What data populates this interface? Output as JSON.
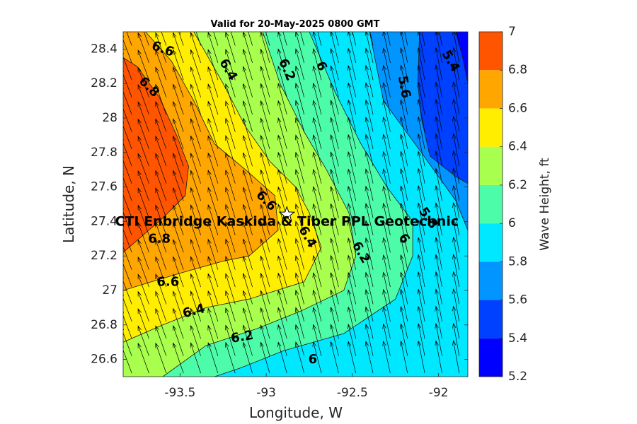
{
  "chart_data": {
    "type": "heatmap",
    "title": "Valid for 20-May-2025 0800 GMT",
    "xlabel": "Longitude, W",
    "ylabel": "Latitude, N",
    "xlim": [
      -93.83,
      -91.83
    ],
    "ylim": [
      26.5,
      28.5
    ],
    "x_ticks": [
      -93.5,
      -93,
      -92.5,
      -92
    ],
    "x_tick_labels": [
      "-93.5",
      "-93",
      "-92.5",
      "-92"
    ],
    "y_ticks": [
      26.6,
      26.8,
      27,
      27.2,
      27.4,
      27.6,
      27.8,
      28,
      28.2,
      28.4
    ],
    "y_tick_labels": [
      "26.6",
      "26.8",
      "27",
      "27.2",
      "27.4",
      "27.6",
      "27.8",
      "28",
      "28.2",
      "28.4"
    ],
    "colorbar": {
      "label": "Wave Height, ft",
      "ticks": [
        5.2,
        5.4,
        5.6,
        5.8,
        6,
        6.2,
        6.4,
        6.6,
        6.8,
        7
      ],
      "tick_labels": [
        "5.2",
        "5.4",
        "5.6",
        "5.8",
        "6",
        "6.2",
        "6.4",
        "6.6",
        "6.8",
        "7"
      ],
      "range": [
        5.2,
        7
      ],
      "level_colors": [
        "#0000ff",
        "#0040ff",
        "#0095ff",
        "#00e8ff",
        "#4dfca9",
        "#a8ff4d",
        "#ffee00",
        "#ffa700",
        "#ff5500"
      ]
    },
    "contour_bands": [
      {
        "level": 5.4,
        "color": "#0040ff",
        "polygon": [
          [
            -92.11,
            28.5
          ],
          [
            -91.83,
            28.5
          ],
          [
            -91.83,
            27.62
          ],
          [
            -91.9,
            27.66
          ],
          [
            -92.05,
            27.78
          ],
          [
            -92.1,
            28.0
          ],
          [
            -92.12,
            28.2
          ]
        ]
      },
      {
        "level": 5.2,
        "color": "#0000ff",
        "polygon": [
          [
            -91.9,
            28.5
          ],
          [
            -91.83,
            28.5
          ],
          [
            -91.83,
            28.2
          ],
          [
            -91.86,
            28.35
          ]
        ]
      }
    ],
    "contour_lines": [
      {
        "level": 6.8,
        "color": "#ff5500",
        "points": [
          [
            -93.83,
            28.35
          ],
          [
            -93.75,
            28.3
          ],
          [
            -93.62,
            28.12
          ],
          [
            -93.52,
            27.9
          ],
          [
            -93.45,
            27.72
          ],
          [
            -93.47,
            27.55
          ],
          [
            -93.6,
            27.42
          ],
          [
            -93.83,
            27.22
          ]
        ]
      },
      {
        "level": 6.6,
        "color": "#ffa700",
        "points": [
          [
            -93.7,
            28.5
          ],
          [
            -93.55,
            28.33
          ],
          [
            -93.42,
            28.1
          ],
          [
            -93.3,
            27.85
          ],
          [
            -93.12,
            27.7
          ],
          [
            -92.95,
            27.55
          ],
          [
            -92.93,
            27.35
          ],
          [
            -93.1,
            27.2
          ],
          [
            -93.25,
            27.17
          ],
          [
            -93.5,
            27.1
          ],
          [
            -93.7,
            27.04
          ],
          [
            -93.83,
            27.0
          ]
        ]
      },
      {
        "level": 6.4,
        "color": "#ffee00",
        "points": [
          [
            -93.42,
            28.5
          ],
          [
            -93.25,
            28.2
          ],
          [
            -93.12,
            27.95
          ],
          [
            -92.98,
            27.75
          ],
          [
            -92.83,
            27.6
          ],
          [
            -92.75,
            27.45
          ],
          [
            -92.68,
            27.25
          ],
          [
            -92.78,
            27.05
          ],
          [
            -93.1,
            26.95
          ],
          [
            -93.35,
            26.9
          ],
          [
            -93.6,
            26.8
          ],
          [
            -93.83,
            26.7
          ]
        ]
      },
      {
        "level": 6.2,
        "color": "#a8ff4d",
        "points": [
          [
            -93.02,
            28.5
          ],
          [
            -92.92,
            28.2
          ],
          [
            -92.78,
            27.92
          ],
          [
            -92.65,
            27.7
          ],
          [
            -92.52,
            27.45
          ],
          [
            -92.48,
            27.2
          ],
          [
            -92.55,
            27.0
          ],
          [
            -92.8,
            26.88
          ],
          [
            -93.05,
            26.78
          ],
          [
            -93.35,
            26.68
          ],
          [
            -93.6,
            26.5
          ]
        ]
      },
      {
        "level": 6.0,
        "color": "#4dfca9",
        "points": [
          [
            -92.75,
            28.5
          ],
          [
            -92.6,
            28.15
          ],
          [
            -92.45,
            27.85
          ],
          [
            -92.3,
            27.6
          ],
          [
            -92.15,
            27.4
          ],
          [
            -92.15,
            27.2
          ],
          [
            -92.25,
            26.95
          ],
          [
            -92.55,
            26.75
          ],
          [
            -92.9,
            26.65
          ],
          [
            -93.15,
            26.55
          ],
          [
            -93.3,
            26.5
          ]
        ]
      },
      {
        "level": 5.8,
        "color": "#00e8ff",
        "points": [
          [
            -92.4,
            28.5
          ],
          [
            -92.32,
            28.1
          ],
          [
            -92.1,
            27.8
          ],
          [
            -91.9,
            27.52
          ],
          [
            -91.83,
            27.35
          ]
        ]
      },
      {
        "level": 5.6,
        "color": "#0095ff",
        "points": [
          [
            -92.11,
            28.5
          ],
          [
            -92.12,
            28.2
          ],
          [
            -92.1,
            28.0
          ],
          [
            -92.05,
            27.78
          ],
          [
            -91.9,
            27.66
          ],
          [
            -91.83,
            27.62
          ]
        ]
      }
    ],
    "contour_labels": [
      {
        "text": "6.6",
        "lon": -93.6,
        "lat": 28.4,
        "rot": 20
      },
      {
        "text": "6.8",
        "lon": -93.68,
        "lat": 28.18,
        "rot": 45
      },
      {
        "text": "6.4",
        "lon": -93.22,
        "lat": 28.28,
        "rot": 60
      },
      {
        "text": "6.2",
        "lon": -92.88,
        "lat": 28.28,
        "rot": 65
      },
      {
        "text": "6",
        "lon": -92.68,
        "lat": 28.3,
        "rot": 65
      },
      {
        "text": "5.6",
        "lon": -92.2,
        "lat": 28.18,
        "rot": 80
      },
      {
        "text": "5.4",
        "lon": -91.93,
        "lat": 28.33,
        "rot": 60
      },
      {
        "text": "6.6",
        "lon": -93.0,
        "lat": 27.52,
        "rot": 45
      },
      {
        "text": "6.8",
        "lon": -93.62,
        "lat": 27.3,
        "rot": 0
      },
      {
        "text": "6.4",
        "lon": -92.76,
        "lat": 27.31,
        "rot": 60
      },
      {
        "text": "6.2",
        "lon": -92.45,
        "lat": 27.22,
        "rot": 60
      },
      {
        "text": "6",
        "lon": -92.2,
        "lat": 27.3,
        "rot": 55
      },
      {
        "text": "5.8",
        "lon": -92.06,
        "lat": 27.42,
        "rot": 55
      },
      {
        "text": "6.6",
        "lon": -93.57,
        "lat": 27.05,
        "rot": 0
      },
      {
        "text": "6.4",
        "lon": -93.42,
        "lat": 26.88,
        "rot": -15
      },
      {
        "text": "6.2",
        "lon": -93.14,
        "lat": 26.73,
        "rot": -10
      },
      {
        "text": "6",
        "lon": -92.73,
        "lat": 26.6,
        "rot": 0
      }
    ],
    "site": {
      "name": "CTI Enbridge  Kaskida & Tiber PPL Geotechnic",
      "lon": -92.88,
      "lat": 27.44
    },
    "wave_direction_arrows": {
      "direction": "toward north-northwest",
      "lon_step": 0.1,
      "lat_step": 0.1
    }
  }
}
